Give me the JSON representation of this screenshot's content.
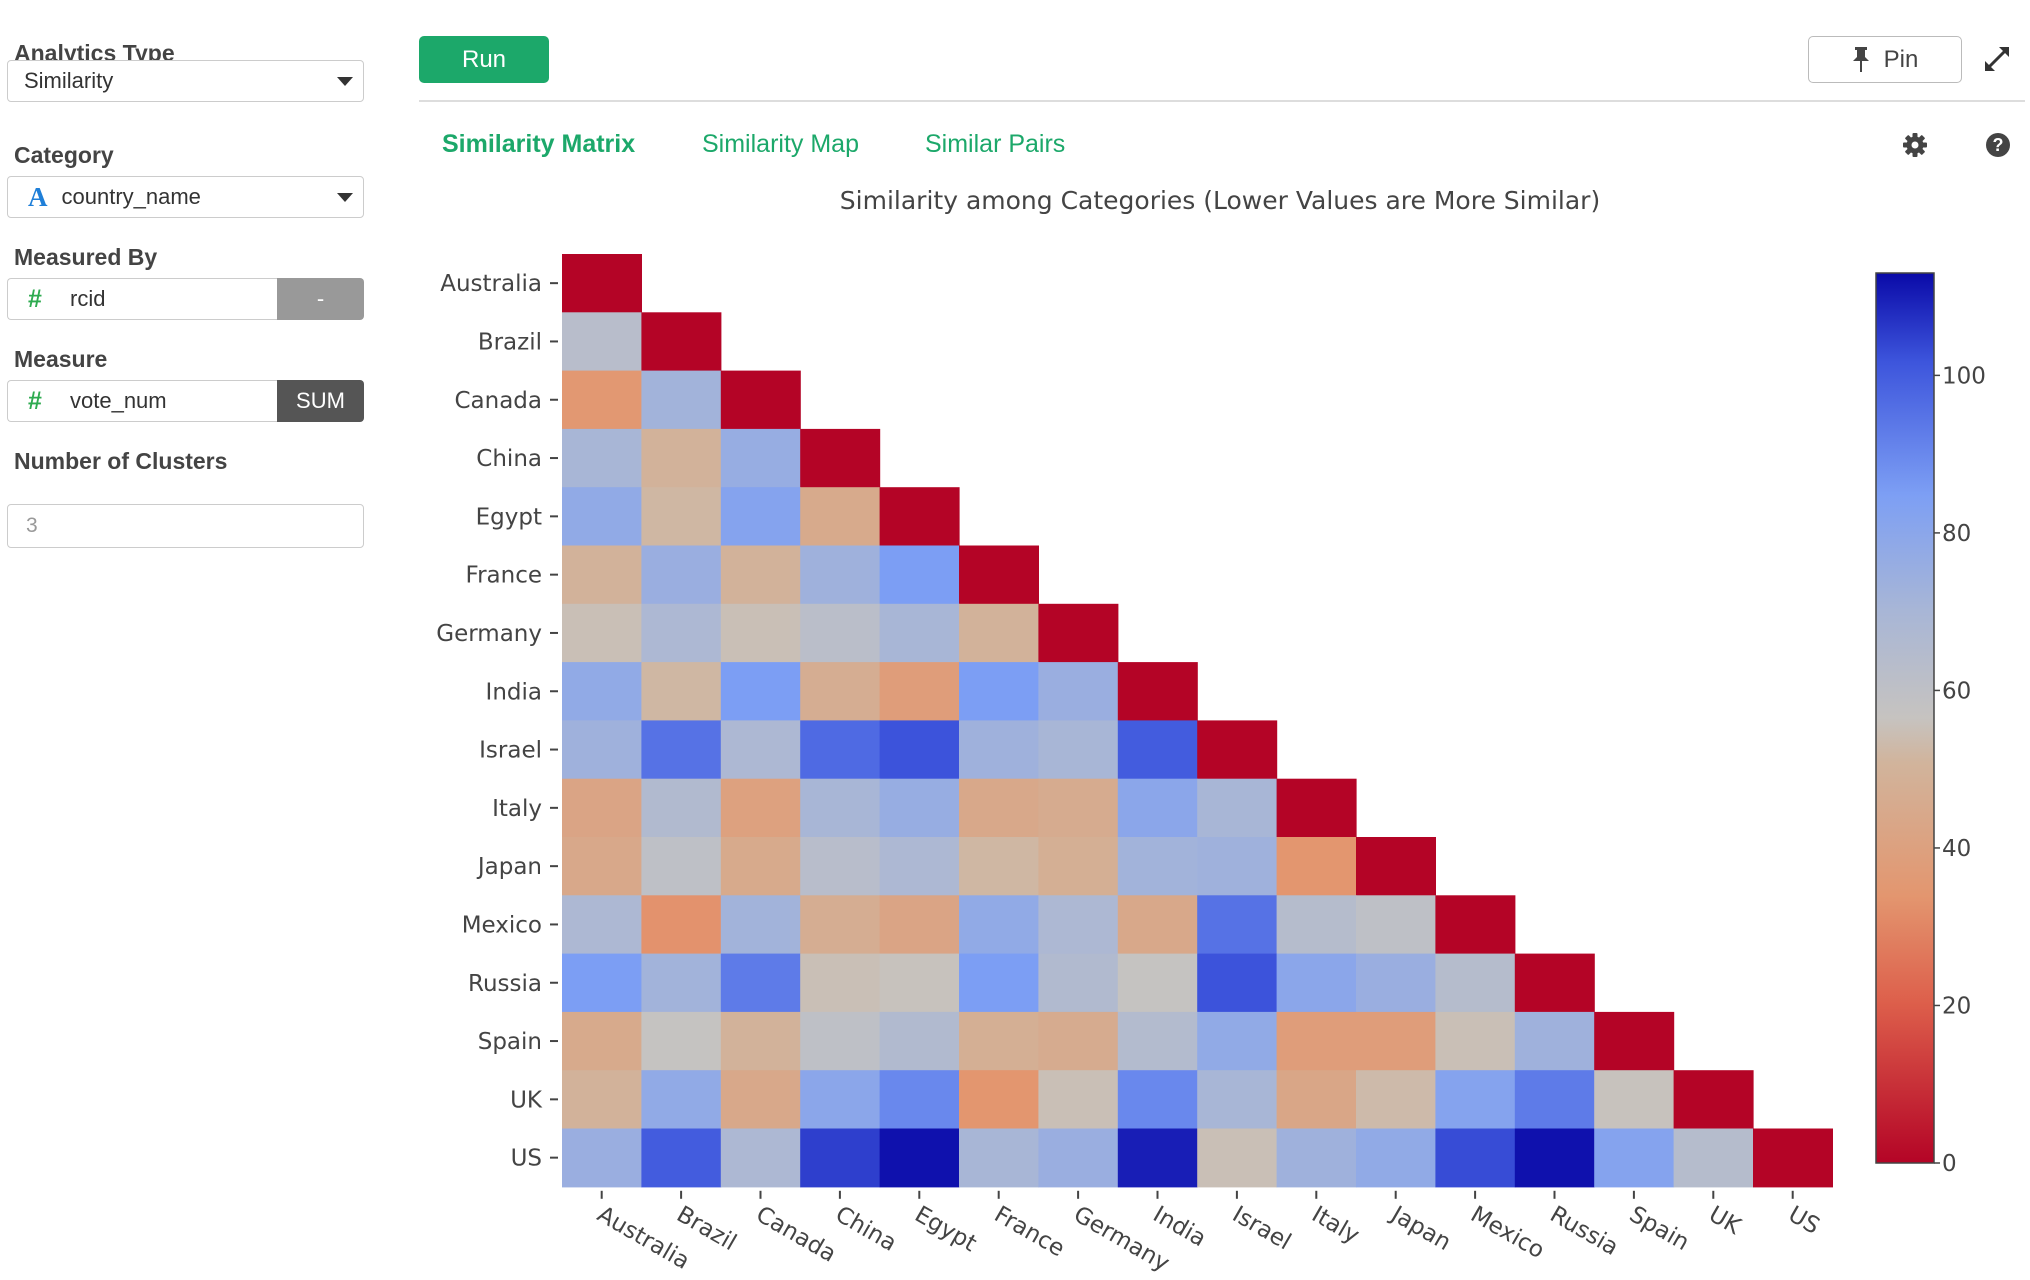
{
  "sidebar": {
    "analytics_type": {
      "label": "Analytics Type",
      "value": "Similarity"
    },
    "category": {
      "label": "Category",
      "value": "country_name",
      "type_icon": "A"
    },
    "measured_by": {
      "label": "Measured By",
      "value": "rcid",
      "type_icon": "#",
      "aggregate": "-"
    },
    "measure": {
      "label": "Measure",
      "value": "vote_num",
      "type_icon": "#",
      "aggregate": "SUM"
    },
    "clusters": {
      "label": "Number of Clusters",
      "placeholder": "3"
    }
  },
  "toolbar": {
    "run_label": "Run",
    "pin_label": "Pin"
  },
  "tabs": [
    {
      "label": "Similarity Matrix",
      "active": true
    },
    {
      "label": "Similarity Map",
      "active": false
    },
    {
      "label": "Similar Pairs",
      "active": false
    }
  ],
  "icons": {
    "gear": "gear-icon",
    "help": "help-icon",
    "pin": "pin-icon",
    "expand": "expand-icon"
  },
  "colors": {
    "accent": "#1ca86a",
    "dark_button": "#555555",
    "gray_button": "#999999"
  },
  "chart_data": {
    "type": "heatmap",
    "title": "Similarity among Categories (Lower Values are More Similar)",
    "categories": [
      "Australia",
      "Brazil",
      "Canada",
      "China",
      "Egypt",
      "France",
      "Germany",
      "India",
      "Israel",
      "Italy",
      "Japan",
      "Mexico",
      "Russia",
      "Spain",
      "UK",
      "US"
    ],
    "matrix": [
      [
        0
      ],
      [
        63,
        0
      ],
      [
        35,
        72,
        0
      ],
      [
        70,
        50,
        76,
        0
      ],
      [
        78,
        52,
        82,
        45,
        0
      ],
      [
        50,
        75,
        50,
        73,
        85,
        0
      ],
      [
        55,
        68,
        55,
        62,
        70,
        50,
        0
      ],
      [
        78,
        52,
        85,
        47,
        38,
        85,
        75,
        0
      ],
      [
        73,
        95,
        68,
        97,
        102,
        73,
        70,
        100,
        0
      ],
      [
        42,
        66,
        40,
        70,
        76,
        44,
        46,
        80,
        70,
        0
      ],
      [
        44,
        60,
        45,
        63,
        68,
        52,
        48,
        72,
        73,
        34,
        0
      ],
      [
        68,
        33,
        72,
        47,
        42,
        78,
        68,
        44,
        95,
        64,
        60,
        0
      ],
      [
        85,
        72,
        93,
        55,
        56,
        85,
        66,
        57,
        102,
        80,
        75,
        64,
        0
      ],
      [
        45,
        57,
        50,
        60,
        66,
        48,
        46,
        65,
        78,
        38,
        38,
        55,
        73,
        0
      ],
      [
        50,
        78,
        44,
        80,
        90,
        34,
        55,
        90,
        70,
        43,
        53,
        82,
        93,
        56,
        0
      ],
      [
        75,
        100,
        68,
        105,
        112,
        70,
        75,
        110,
        55,
        73,
        78,
        103,
        112,
        82,
        64,
        0
      ]
    ],
    "colorbar": {
      "min": 0,
      "max": 113,
      "ticks": [
        0,
        20,
        40,
        60,
        80,
        100
      ]
    }
  }
}
